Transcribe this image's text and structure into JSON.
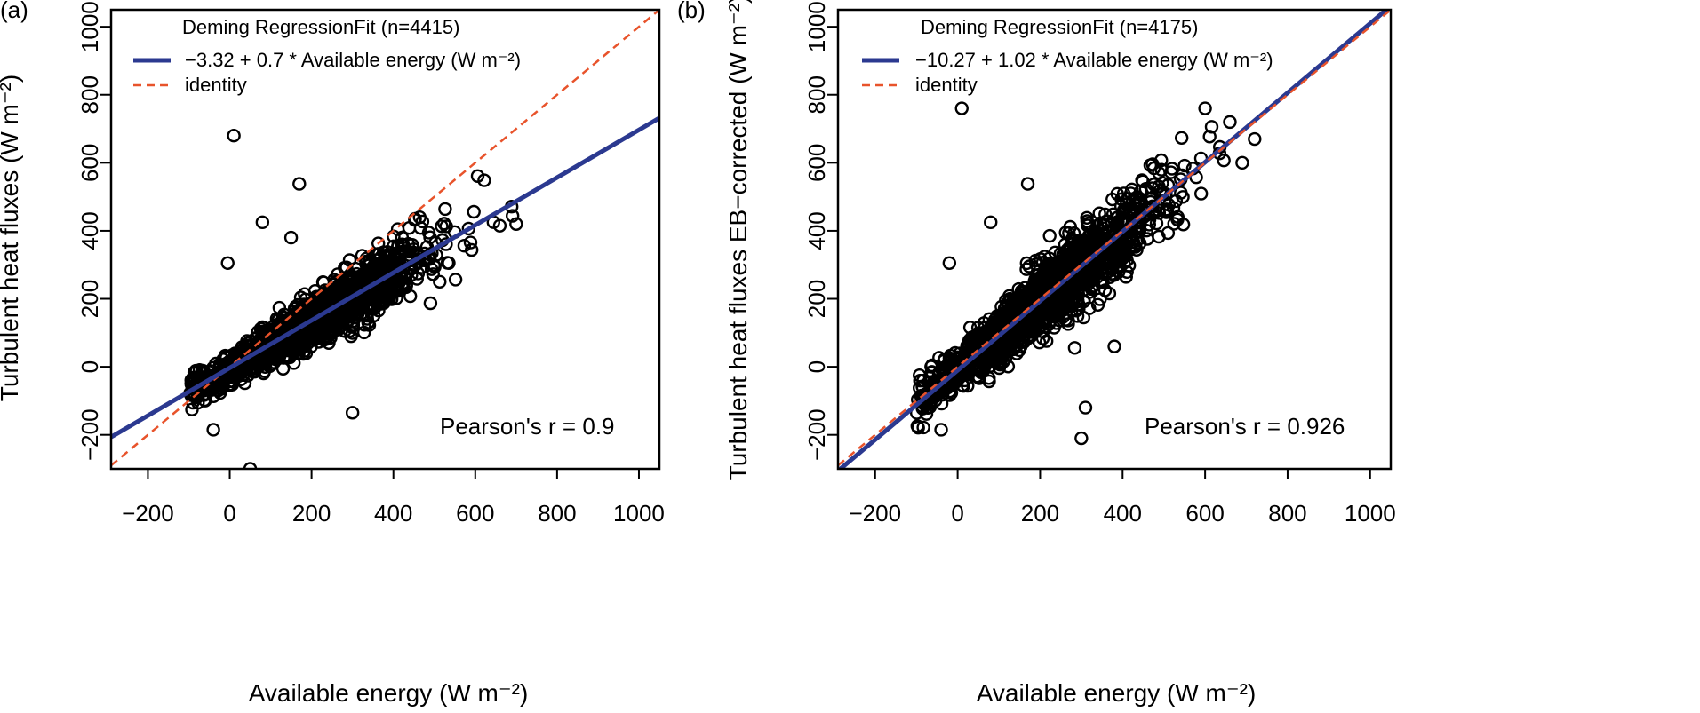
{
  "chart_data": [
    {
      "type": "scatter",
      "panel_tag": "(a)",
      "xlabel": "Available energy (W m⁻²)",
      "ylabel": "Turbulent heat fluxes (W m⁻²)",
      "xlim": [
        -290,
        1050
      ],
      "ylim": [
        -300,
        1050
      ],
      "xticks": [
        "−200",
        "0",
        "200",
        "400",
        "600",
        "800",
        "1000"
      ],
      "yticks": [
        "−200",
        "0",
        "200",
        "400",
        "600",
        "800",
        "1000"
      ],
      "xtick_values": [
        -200,
        0,
        200,
        400,
        600,
        800,
        1000
      ],
      "ytick_values": [
        -200,
        0,
        200,
        400,
        600,
        800,
        1000
      ],
      "grid": false,
      "legend_placement": "top-left",
      "legend_title": "Deming RegressionFit (n=4415)",
      "series": [
        {
          "name": "−3.32 + 0.7 * Available energy (W m⁻²)",
          "kind": "line",
          "intercept": -3.32,
          "slope": 0.7,
          "color": "#2b3990"
        },
        {
          "name": "identity",
          "kind": "line",
          "intercept": 0,
          "slope": 1,
          "color": "#e8532b"
        }
      ],
      "cloud": {
        "count": 4415,
        "x_range": [
          -100,
          720
        ],
        "slope": 0.7,
        "intercept": -3.32,
        "spread": 35
      },
      "outliers": [
        [
          10,
          680
        ],
        [
          170,
          538
        ],
        [
          80,
          425
        ],
        [
          -5,
          305
        ],
        [
          300,
          -135
        ],
        [
          -40,
          -185
        ],
        [
          50,
          -300
        ],
        [
          150,
          380
        ],
        [
          700,
          420
        ],
        [
          660,
          415
        ]
      ],
      "annotation": "Pearson's r = 0.9"
    },
    {
      "type": "scatter",
      "panel_tag": "(b)",
      "xlabel": "Available energy (W m⁻²)",
      "ylabel": "Turbulent heat fluxes EB−corrected (W m⁻²)",
      "xlim": [
        -290,
        1050
      ],
      "ylim": [
        -300,
        1050
      ],
      "xticks": [
        "−200",
        "0",
        "200",
        "400",
        "600",
        "800",
        "1000"
      ],
      "yticks": [
        "−200",
        "0",
        "200",
        "400",
        "600",
        "800",
        "1000"
      ],
      "xtick_values": [
        -200,
        0,
        200,
        400,
        600,
        800,
        1000
      ],
      "ytick_values": [
        -200,
        0,
        200,
        400,
        600,
        800,
        1000
      ],
      "grid": false,
      "legend_placement": "top-left",
      "legend_title": "Deming RegressionFit (n=4175)",
      "series": [
        {
          "name": "−10.27 + 1.02 * Available energy (W m⁻²)",
          "kind": "line",
          "intercept": -10.27,
          "slope": 1.02,
          "color": "#2b3990"
        },
        {
          "name": "identity",
          "kind": "line",
          "intercept": 0,
          "slope": 1,
          "color": "#e8532b"
        }
      ],
      "cloud": {
        "count": 4175,
        "x_range": [
          -100,
          720
        ],
        "slope": 1.0,
        "intercept": -8,
        "spread": 45
      },
      "outliers": [
        [
          10,
          760
        ],
        [
          -20,
          305
        ],
        [
          170,
          538
        ],
        [
          80,
          425
        ],
        [
          -40,
          -185
        ],
        [
          300,
          -210
        ],
        [
          310,
          -120
        ],
        [
          380,
          60
        ],
        [
          690,
          600
        ],
        [
          720,
          670
        ],
        [
          660,
          720
        ],
        [
          600,
          760
        ]
      ],
      "annotation": "Pearson's r = 0.926"
    }
  ]
}
